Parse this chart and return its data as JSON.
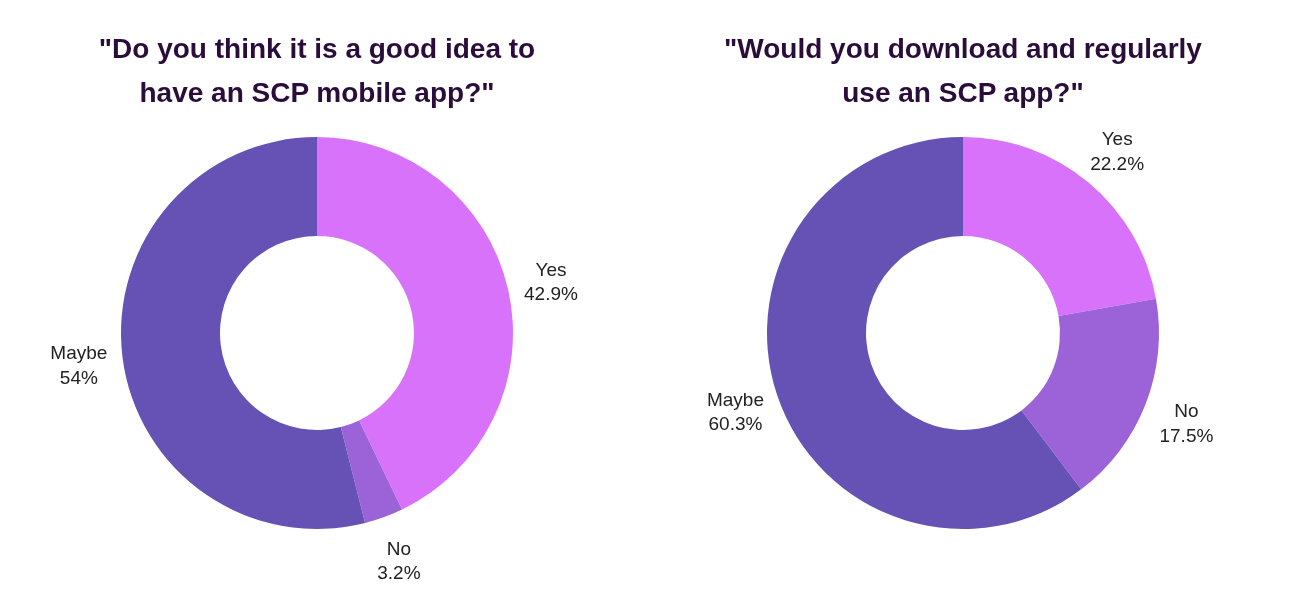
{
  "chart_data": [
    {
      "type": "donut",
      "title": "\"Do you think it is a good idea to have an SCP mobile app?\"",
      "categories": [
        "Yes",
        "No",
        "Maybe"
      ],
      "values": [
        42.9,
        3.2,
        54
      ],
      "value_labels": [
        "42.9%",
        "3.2%",
        "54%"
      ],
      "colors": [
        "#d972fb",
        "#9c63d9",
        "#6651b5"
      ]
    },
    {
      "type": "donut",
      "title": "\"Would you download and regularly use an SCP app?\"",
      "categories": [
        "Yes",
        "No",
        "Maybe"
      ],
      "values": [
        22.2,
        17.5,
        60.3
      ],
      "value_labels": [
        "22.2%",
        "17.5%",
        "60.3%"
      ],
      "colors": [
        "#d972fb",
        "#9c63d9",
        "#6651b5"
      ]
    }
  ]
}
